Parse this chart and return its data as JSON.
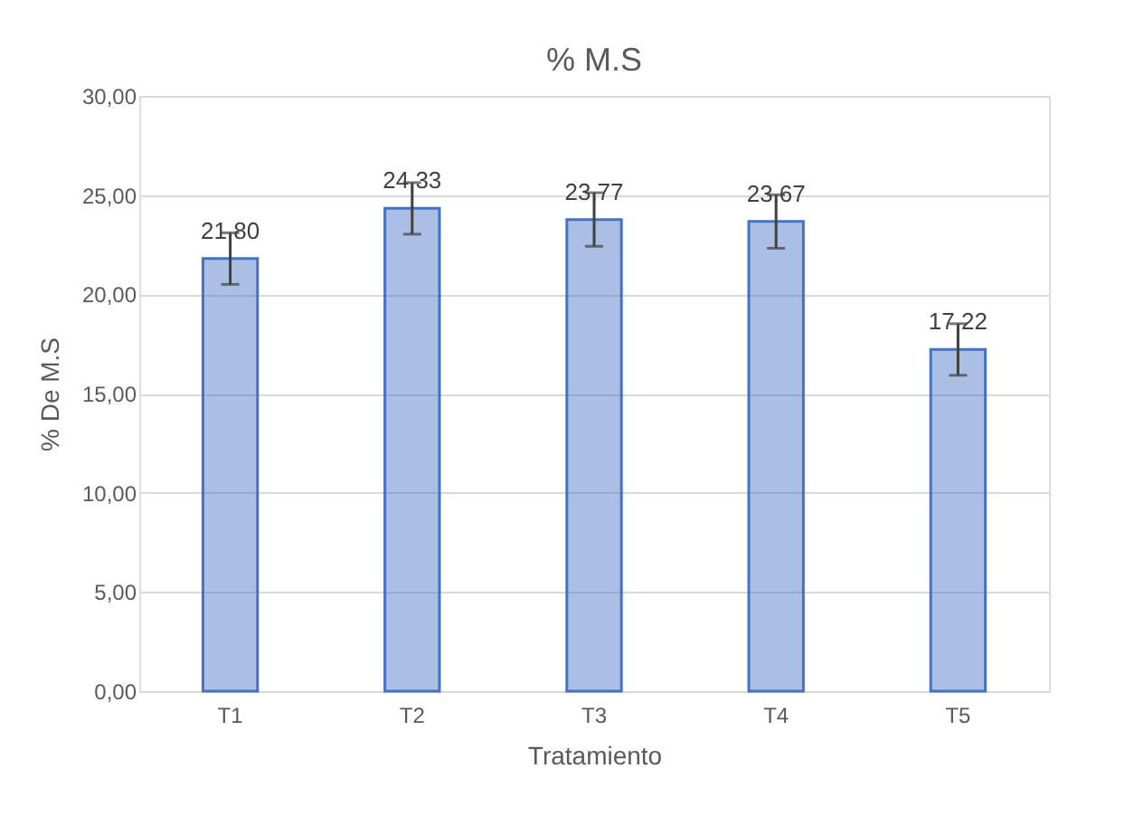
{
  "chart_data": {
    "type": "bar",
    "title": "% M.S",
    "xlabel": "Tratamiento",
    "ylabel": "% De M.S",
    "categories": [
      "T1",
      "T2",
      "T3",
      "T4",
      "T5"
    ],
    "values": [
      21.8,
      24.33,
      23.77,
      23.67,
      17.22
    ],
    "value_labels": [
      "21,80",
      "24,33",
      "23,77",
      "23,67",
      "17,22"
    ],
    "errors": [
      1.3,
      1.3,
      1.35,
      1.35,
      1.3
    ],
    "color": "#4472c4",
    "ylim": [
      0,
      30
    ],
    "yticks": [
      {
        "value": 0,
        "label": "0,00"
      },
      {
        "value": 5,
        "label": "5,00"
      },
      {
        "value": 10,
        "label": "10,00"
      },
      {
        "value": 15,
        "label": "15,00"
      },
      {
        "value": 20,
        "label": "20,00"
      },
      {
        "value": 25,
        "label": "25,00"
      },
      {
        "value": 30,
        "label": "30,00"
      }
    ],
    "grid": "y"
  }
}
